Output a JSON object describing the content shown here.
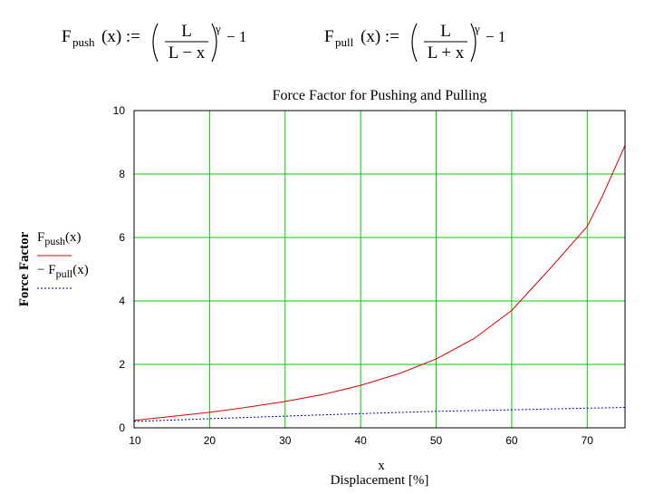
{
  "formulas": [
    {
      "fn": "F",
      "sub": "push",
      "arg": "(x) :=",
      "num": "L",
      "den": "L − x",
      "exp": "γ",
      "tail": "− 1"
    },
    {
      "fn": "F",
      "sub": "pull",
      "arg": "(x) :=",
      "num": "L",
      "den": "L + x",
      "exp": "γ",
      "tail": "− 1"
    }
  ],
  "colors": {
    "push": "#dd0000",
    "pull": "#0000aa",
    "grid": "#00cc00",
    "frame": "#000000"
  },
  "chart_data": {
    "type": "line",
    "title": "Force Factor for Pushing and Pulling",
    "xlabel": "x",
    "xlabel2": "Displacement [%]",
    "ylabel": "Force Factor",
    "xlim": [
      10,
      75
    ],
    "ylim": [
      0,
      10
    ],
    "xticks": [
      10,
      20,
      30,
      40,
      50,
      60,
      70
    ],
    "yticks": [
      0,
      2,
      4,
      6,
      8,
      10
    ],
    "grid": true,
    "legend_position": "left",
    "legend": [
      {
        "prefix": "",
        "fn": "F",
        "sub": "push",
        "arg": "(x)",
        "style": "solid"
      },
      {
        "prefix": "− ",
        "fn": "F",
        "sub": "pull",
        "arg": "(x)",
        "style": "dotted"
      }
    ],
    "series": [
      {
        "fn": "push",
        "x": [
          10,
          15,
          20,
          25,
          30,
          35,
          40,
          45,
          50,
          55,
          60,
          65,
          70,
          72,
          75
        ],
        "y": [
          0.23,
          0.36,
          0.49,
          0.65,
          0.83,
          1.05,
          1.34,
          1.7,
          2.17,
          2.81,
          3.7,
          5.0,
          6.35,
          7.3,
          8.9
        ]
      },
      {
        "fn": "pull",
        "x": [
          10,
          20,
          30,
          40,
          50,
          60,
          70,
          75
        ],
        "y": [
          0.2,
          0.29,
          0.37,
          0.45,
          0.52,
          0.57,
          0.62,
          0.64
        ]
      }
    ]
  }
}
